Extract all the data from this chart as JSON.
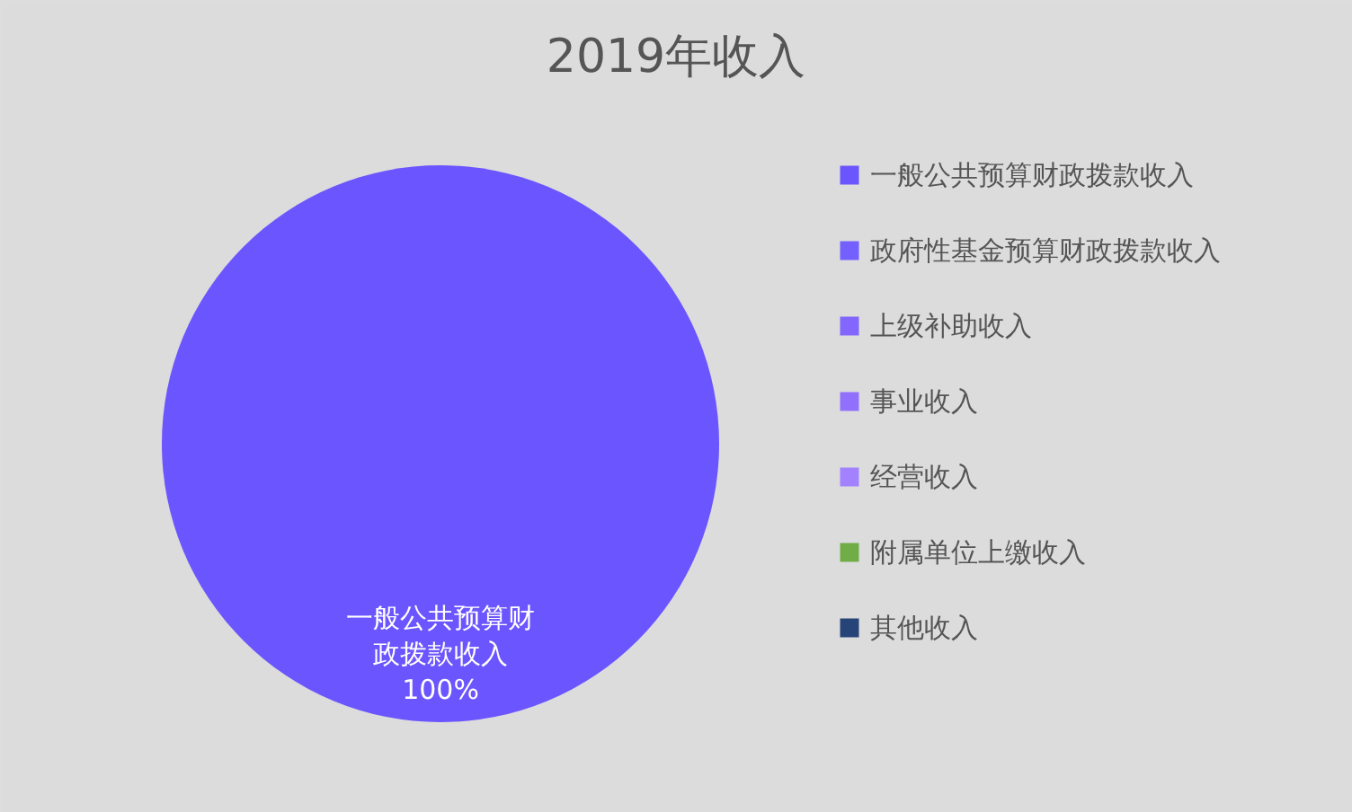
{
  "chart_data": {
    "type": "pie",
    "title": "2019年收入",
    "categories": [
      "一般公共预算财政拨款收入",
      "政府性基金预算财政拨款收入",
      "上级补助收入",
      "事业收入",
      "经营收入",
      "附属单位上缴收入",
      "其他收入"
    ],
    "values": [
      100,
      0,
      0,
      0,
      0,
      0,
      0
    ],
    "colors": [
      "#6b55fe",
      "#7460fe",
      "#8266fe",
      "#9270fe",
      "#a282fe",
      "#70ad47",
      "#264478"
    ],
    "value_labels": [
      "一般公共预算财政拨款收入\n100%",
      null,
      null,
      null,
      null,
      null,
      null
    ],
    "legend": "right"
  }
}
